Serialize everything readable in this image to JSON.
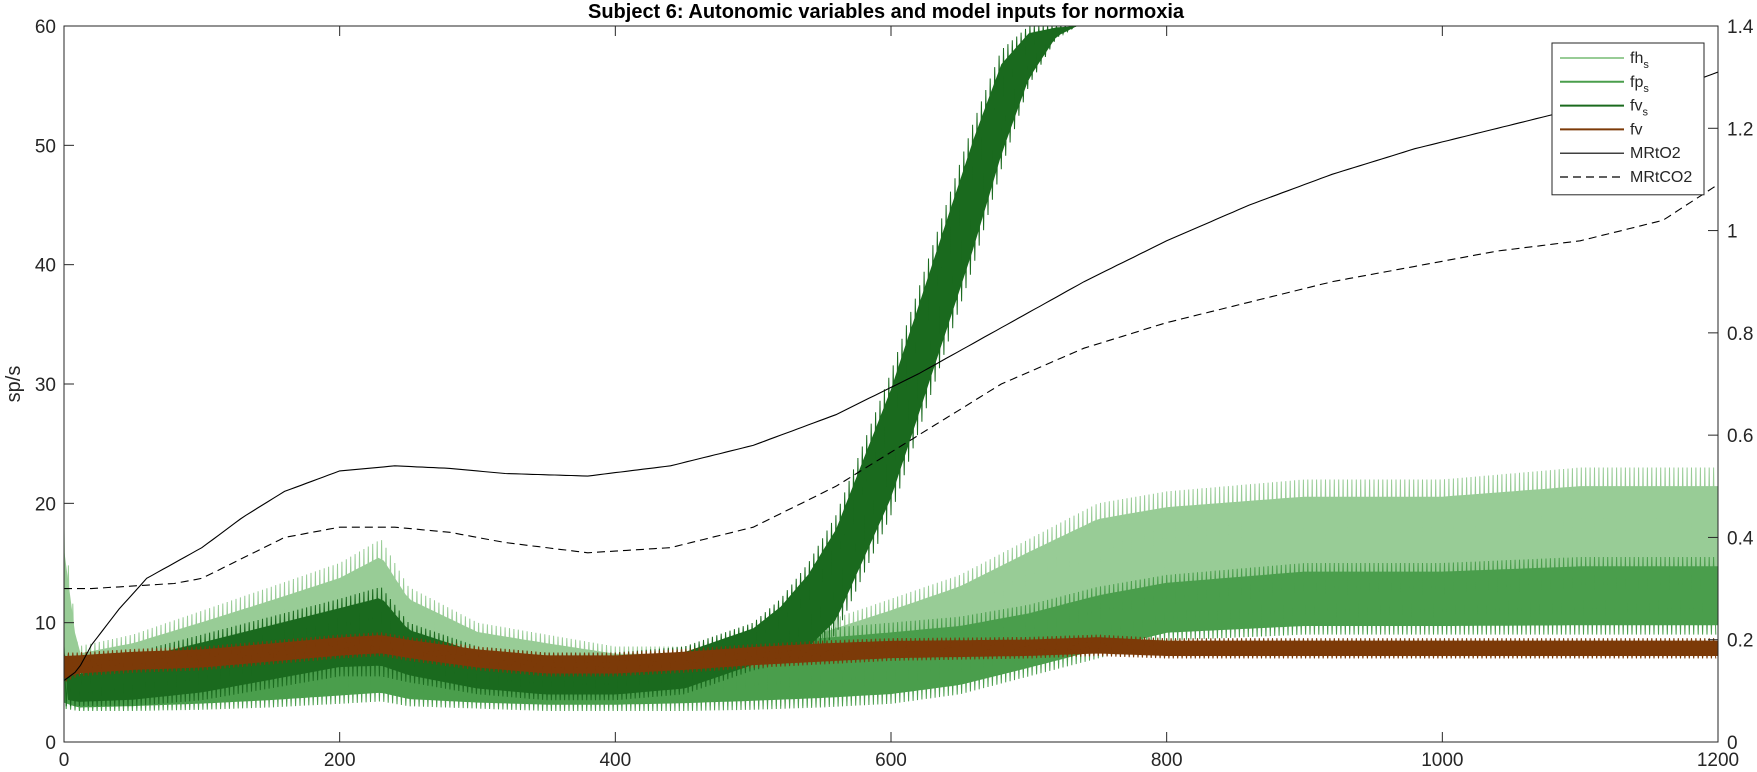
{
  "chart_data": {
    "type": "line",
    "title": "Subject 6: Autonomic variables and model inputs for normoxia",
    "xlabel": "",
    "ylabel": "sp/s",
    "ylabel_right": "",
    "xlim": [
      0,
      1200
    ],
    "ylim_left": [
      0,
      60
    ],
    "ylim_right": [
      0,
      1.4
    ],
    "x_ticks": [
      "0",
      "200",
      "400",
      "600",
      "800",
      "1000",
      "1200"
    ],
    "y_left_ticks": [
      "0",
      "10",
      "20",
      "30",
      "40",
      "50",
      "60"
    ],
    "y_right_ticks": [
      "0",
      "0.2",
      "0.4",
      "0.6",
      "0.8",
      "1",
      "1.2",
      "1.4"
    ],
    "grid": false,
    "legend_position": "top-right",
    "colors": {
      "fh_s": "#98cc96",
      "fp_s": "#4a9e4c",
      "fv_s": "#1a6a1e",
      "fv": "#7c3a08",
      "MRtO2": "#000000",
      "MRtCO2": "#000000"
    },
    "series": [
      {
        "name": "fh",
        "subscript": "s",
        "axis": "left",
        "style": "solid-band",
        "color": "#98cc96",
        "x": [
          0,
          10,
          50,
          100,
          150,
          200,
          230,
          250,
          300,
          350,
          400,
          450,
          500,
          550,
          600,
          650,
          700,
          750,
          800,
          900,
          1000,
          1100,
          1200
        ],
        "low": [
          3,
          3,
          3,
          3,
          3.5,
          4.5,
          5,
          4.5,
          3.5,
          3,
          3,
          3,
          3,
          3,
          4,
          6,
          8,
          9,
          10,
          10,
          10,
          10,
          10
        ],
        "high": [
          18,
          8,
          9,
          11,
          13,
          15,
          17,
          13,
          10,
          9,
          8,
          8,
          8.5,
          10,
          12,
          14,
          17,
          20,
          21,
          22,
          22,
          23,
          23
        ]
      },
      {
        "name": "fp",
        "subscript": "s",
        "axis": "left",
        "style": "solid-band",
        "color": "#4a9e4c",
        "x": [
          0,
          10,
          50,
          100,
          150,
          200,
          230,
          250,
          300,
          350,
          400,
          450,
          500,
          550,
          600,
          650,
          700,
          750,
          800,
          900,
          1000,
          1100,
          1200
        ],
        "low": [
          2.8,
          2.6,
          2.6,
          2.7,
          2.9,
          3.2,
          3.4,
          3.0,
          2.8,
          2.6,
          2.6,
          2.6,
          2.7,
          2.9,
          3.2,
          4.0,
          5.5,
          7.0,
          8.5,
          9.0,
          9.0,
          9.0,
          9.0
        ],
        "high": [
          7,
          5,
          6,
          7,
          8,
          9,
          9.5,
          8,
          7,
          7,
          7,
          8,
          9,
          9.5,
          10,
          10.5,
          11.5,
          13,
          14,
          15,
          15,
          15.5,
          15.5
        ]
      },
      {
        "name": "fv",
        "subscript": "s",
        "axis": "left",
        "style": "solid-band",
        "color": "#1a6a1e",
        "x": [
          0,
          10,
          50,
          100,
          150,
          200,
          230,
          250,
          300,
          350,
          400,
          450,
          500,
          520,
          540,
          560,
          580,
          600,
          620,
          640,
          660,
          680,
          700,
          720,
          735
        ],
        "low": [
          3,
          3,
          3,
          3.5,
          4.5,
          5.5,
          5.5,
          5,
          4,
          3.5,
          3.5,
          4,
          6,
          6.5,
          7,
          9,
          14,
          19,
          26,
          33,
          40,
          48,
          55,
          59,
          60
        ],
        "high": [
          8,
          6,
          7.5,
          9,
          10.5,
          12,
          13,
          10,
          8,
          7.5,
          7.5,
          8,
          10,
          12,
          15,
          19,
          25,
          31,
          38,
          45,
          52,
          58,
          60,
          60,
          60
        ]
      },
      {
        "name": "fv",
        "axis": "left",
        "style": "solid-band",
        "color": "#7c3a08",
        "x": [
          0,
          10,
          50,
          100,
          150,
          200,
          230,
          250,
          300,
          350,
          400,
          450,
          500,
          550,
          600,
          700,
          750,
          800,
          900,
          1000,
          1100,
          1200
        ],
        "low": [
          5,
          5.5,
          5.8,
          6.0,
          6.5,
          7.0,
          7.2,
          6.8,
          6.0,
          5.5,
          5.5,
          5.8,
          6.2,
          6.5,
          6.8,
          7.0,
          7.2,
          7.0,
          7.0,
          7.0,
          7.0,
          7.0
        ],
        "high": [
          7.5,
          7.5,
          7.8,
          8.0,
          8.5,
          9.0,
          9.2,
          8.8,
          8.0,
          7.5,
          7.5,
          7.8,
          8.2,
          8.5,
          8.7,
          8.8,
          9.0,
          8.7,
          8.7,
          8.7,
          8.7,
          8.7
        ]
      },
      {
        "name": "MRtO2",
        "axis": "right",
        "style": "solid",
        "color": "#000000",
        "x": [
          0,
          10,
          20,
          40,
          60,
          80,
          100,
          130,
          160,
          200,
          240,
          280,
          320,
          380,
          440,
          500,
          560,
          620,
          680,
          740,
          800,
          860,
          920,
          980,
          1040,
          1100,
          1160,
          1200
        ],
        "y": [
          0.12,
          0.14,
          0.19,
          0.26,
          0.32,
          0.35,
          0.38,
          0.44,
          0.49,
          0.53,
          0.54,
          0.535,
          0.525,
          0.52,
          0.54,
          0.58,
          0.64,
          0.72,
          0.81,
          0.9,
          0.98,
          1.05,
          1.11,
          1.16,
          1.2,
          1.24,
          1.27,
          1.31
        ]
      },
      {
        "name": "MRtCO2",
        "axis": "right",
        "style": "dashed",
        "color": "#000000",
        "x": [
          0,
          20,
          50,
          80,
          100,
          130,
          160,
          200,
          240,
          280,
          320,
          380,
          440,
          500,
          560,
          620,
          680,
          740,
          800,
          860,
          920,
          980,
          1040,
          1100,
          1160,
          1200
        ],
        "y": [
          0.3,
          0.3,
          0.305,
          0.31,
          0.32,
          0.36,
          0.4,
          0.42,
          0.42,
          0.41,
          0.39,
          0.37,
          0.38,
          0.42,
          0.5,
          0.6,
          0.7,
          0.77,
          0.82,
          0.86,
          0.9,
          0.93,
          0.96,
          0.98,
          1.02,
          1.09
        ]
      }
    ]
  }
}
